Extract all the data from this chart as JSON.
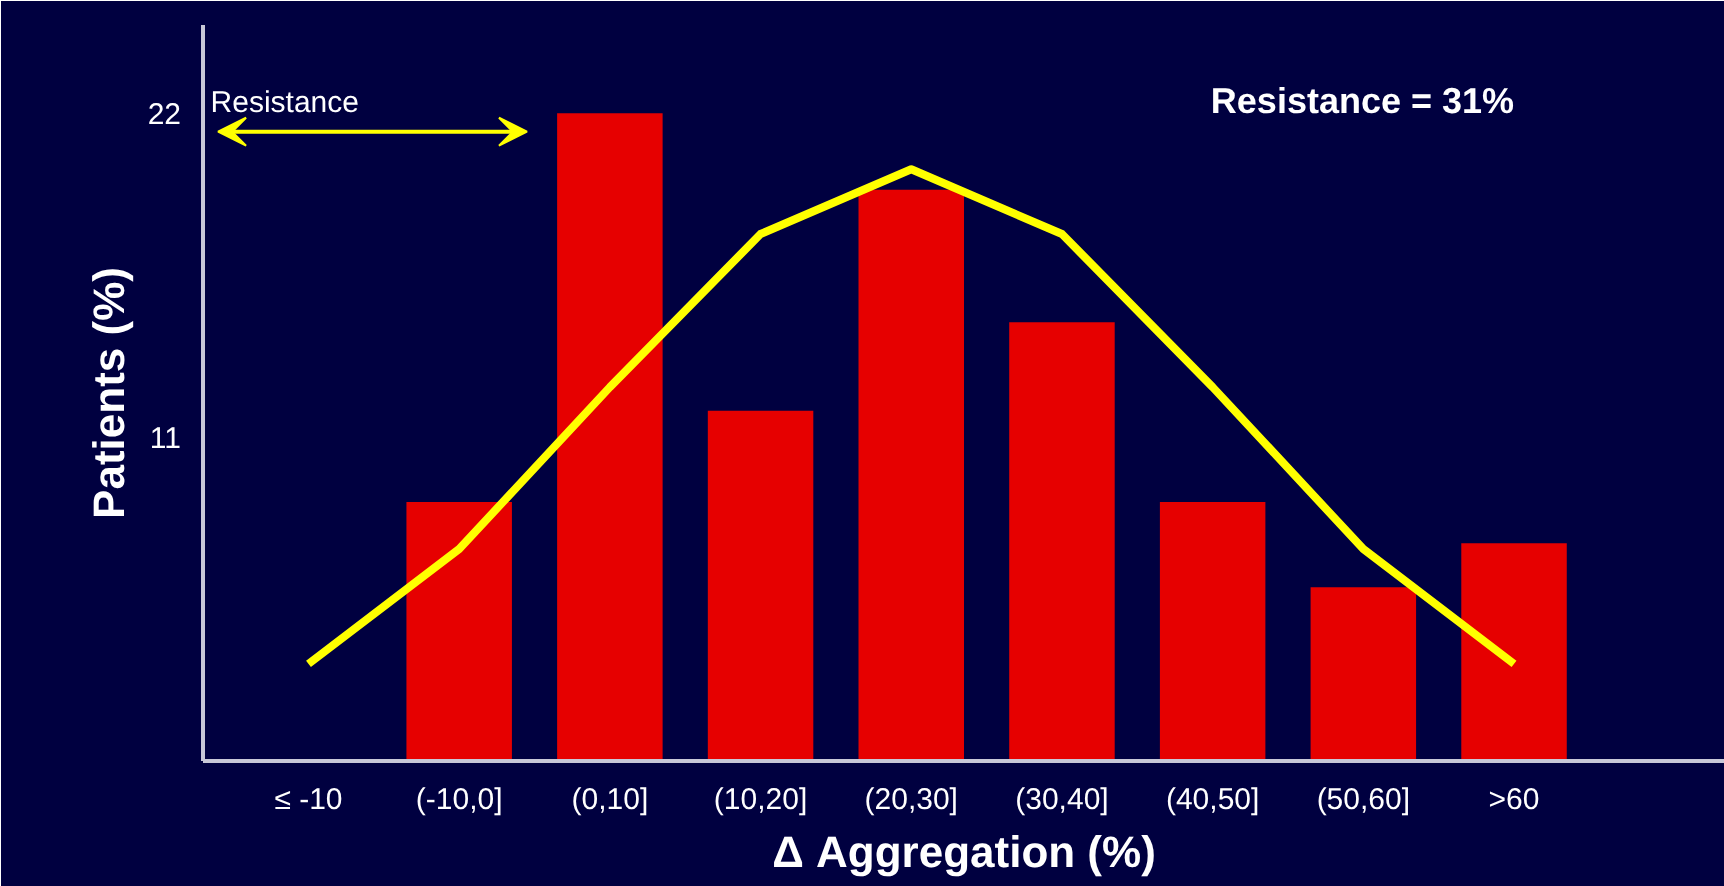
{
  "chart_data": {
    "type": "bar",
    "categories": [
      "≤ -10",
      "(-10,0]",
      "(0,10]",
      "(10,20]",
      "(20,30]",
      "(30,40]",
      "(40,50]",
      "(50,60]",
      ">60"
    ],
    "values": [
      null,
      8.8,
      22,
      11.9,
      19.4,
      14.9,
      8.8,
      5.9,
      7.4
    ],
    "color": "#e60000",
    "series": [
      {
        "type": "line",
        "color": "#ffff00",
        "values": [
          3.3,
          7.2,
          12.7,
          17.9,
          20.1,
          17.9,
          12.7,
          7.2,
          3.3
        ]
      }
    ],
    "ylim": [
      0,
      25
    ],
    "yticks": [
      11,
      22
    ],
    "xlabel": "Δ Aggregation (%)",
    "ylabel": "Patients (%)",
    "annotations": [
      "Resistance",
      "Resistance = 31%"
    ],
    "grid": false
  }
}
